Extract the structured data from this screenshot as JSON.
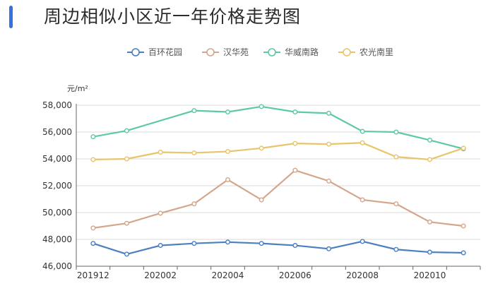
{
  "header": {
    "title": "周边相似小区近一年价格走势图"
  },
  "chart_data": {
    "type": "line",
    "title": "周边相似小区近一年价格走势图",
    "ylabel": "元/m²",
    "ylim": [
      46000,
      58000
    ],
    "yticks": [
      "46,000",
      "48,000",
      "50,000",
      "52,000",
      "54,000",
      "56,000",
      "58,000"
    ],
    "x": [
      "201912",
      "202001",
      "202002",
      "202003",
      "202004",
      "202005",
      "202006",
      "202007",
      "202008",
      "202009",
      "202010",
      "202011"
    ],
    "xtick_labels": [
      "201912",
      "202002",
      "202004",
      "202006",
      "202008",
      "202010"
    ],
    "grid": true,
    "legend_position": "top-center",
    "series": [
      {
        "name": "百环花园",
        "color": "#4a7fc1",
        "values": [
          47700,
          46900,
          47550,
          47700,
          47800,
          47700,
          47550,
          47300,
          47850,
          47250,
          47050,
          47000
        ]
      },
      {
        "name": "汉华苑",
        "color": "#d4a68c",
        "values": [
          48850,
          49200,
          49950,
          50650,
          52450,
          50950,
          53150,
          52350,
          50950,
          50650,
          49300,
          49000
        ]
      },
      {
        "name": "华威南路",
        "color": "#5ec8a8",
        "values": [
          55650,
          56100,
          null,
          57600,
          57500,
          57900,
          57500,
          57400,
          56050,
          56000,
          55400,
          54750
        ]
      },
      {
        "name": "农光南里",
        "color": "#e8c46a",
        "values": [
          53950,
          54000,
          54500,
          54450,
          54550,
          54800,
          55150,
          55100,
          55200,
          54150,
          53950,
          54800
        ]
      }
    ]
  }
}
